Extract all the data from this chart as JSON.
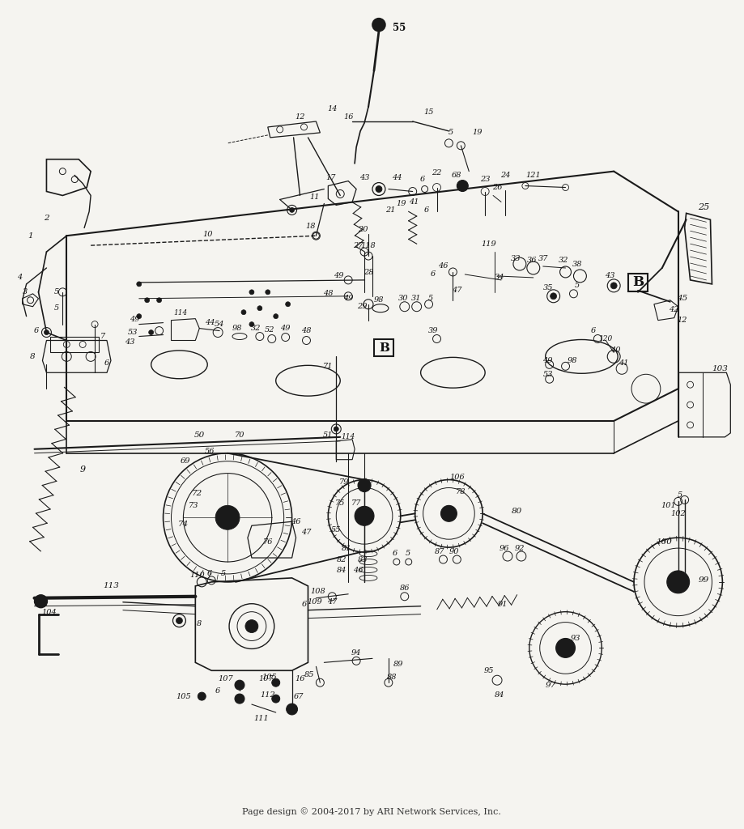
{
  "footer": "Page design © 2004-2017 by ARI Network Services, Inc.",
  "background_color": "#f5f4f0",
  "fig_width": 9.19,
  "fig_height": 10.24,
  "dpi": 100
}
